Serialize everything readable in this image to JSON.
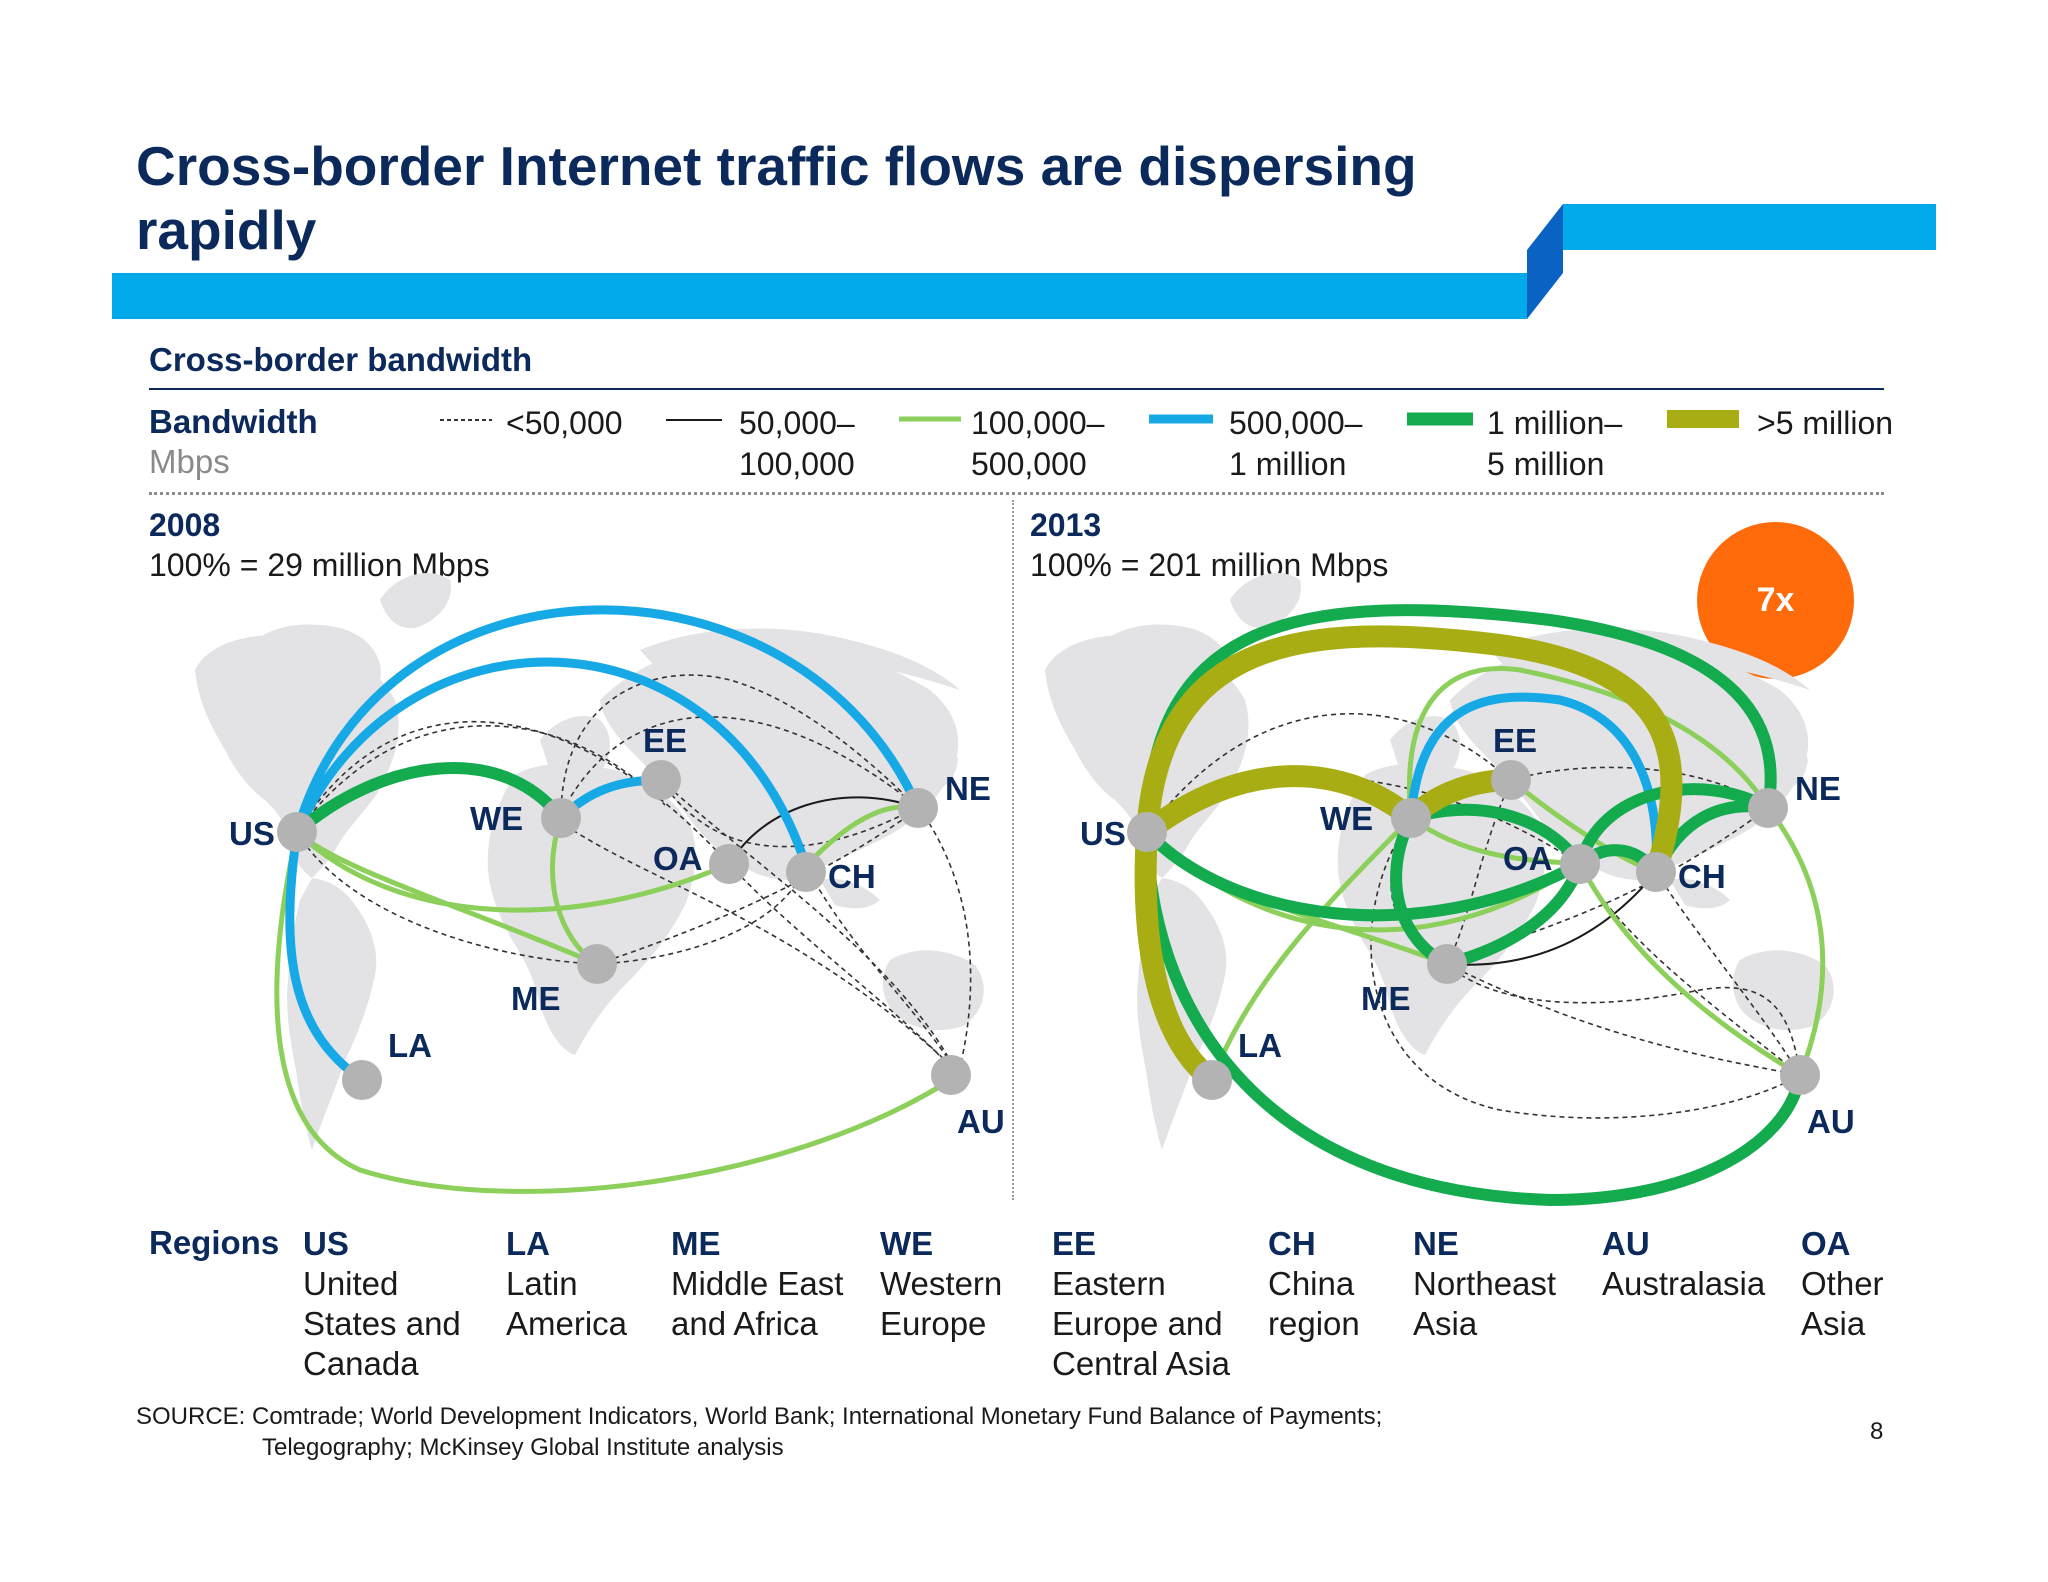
{
  "title": "Cross-border Internet traffic flows are dispersing rapidly",
  "section_title": "Cross-border bandwidth",
  "legend": {
    "heading": "Bandwidth",
    "unit": "Mbps",
    "items": [
      {
        "line1": "<50,000",
        "line2": "",
        "style": "dashed",
        "color": "#333333"
      },
      {
        "line1": "50,000–",
        "line2": "100,000",
        "style": "thin",
        "color": "#1a1a1a"
      },
      {
        "line1": "100,000–",
        "line2": "500,000",
        "style": "light-green",
        "color": "#8ccf5a"
      },
      {
        "line1": "500,000–",
        "line2": "1 million",
        "style": "blue",
        "color": "#16a9e6"
      },
      {
        "line1": "1 million–",
        "line2": "5 million",
        "style": "green",
        "color": "#14ab4f"
      },
      {
        "line1": ">5 million",
        "line2": "",
        "style": "olive",
        "color": "#a8ad14"
      }
    ]
  },
  "panels": [
    {
      "year": "2008",
      "total": "100% = 29 million Mbps"
    },
    {
      "year": "2013",
      "total": "100% = 201 million Mbps"
    }
  ],
  "badge": "7x",
  "regions_heading": "Regions",
  "regions": [
    {
      "code": "US",
      "name": "United\nStates and\nCanada"
    },
    {
      "code": "LA",
      "name": "Latin\nAmerica"
    },
    {
      "code": "ME",
      "name": "Middle East\nand Africa"
    },
    {
      "code": "WE",
      "name": "Western\nEurope"
    },
    {
      "code": "EE",
      "name": "Eastern\nEurope and\nCentral Asia"
    },
    {
      "code": "CH",
      "name": "China\nregion"
    },
    {
      "code": "NE",
      "name": "Northeast\nAsia"
    },
    {
      "code": "AU",
      "name": "Australasia"
    },
    {
      "code": "OA",
      "name": "Other\nAsia"
    }
  ],
  "source_line1": "SOURCE: Comtrade; World Development Indicators, World Bank; International Monetary Fund Balance of Payments;",
  "source_line2": "Telegography; McKinsey Global Institute analysis",
  "page_number": "8",
  "colors": {
    "navy": "#0b2a5b",
    "banner": "#00a9e8",
    "banner_dark": "#0a62c2",
    "node": "#b3b3b3",
    "map": "#e3e3e6"
  }
}
